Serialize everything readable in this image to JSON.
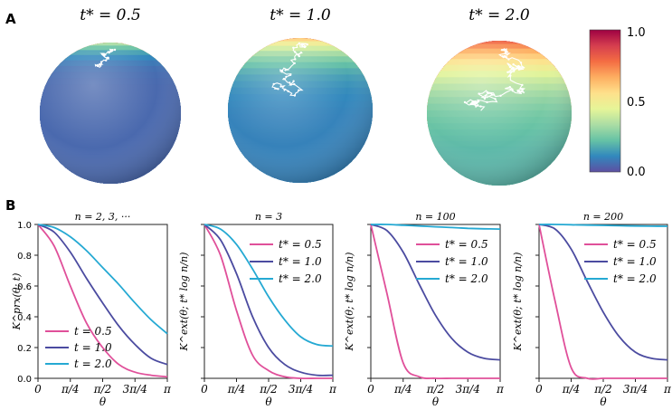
{
  "panel_labels": {
    "a": "A",
    "b": "B"
  },
  "spheres": [
    {
      "title": "t* = 0.5",
      "t_star": 0.5
    },
    {
      "title": "t* = 1.0",
      "t_star": 1.0
    },
    {
      "title": "t* = 2.0",
      "t_star": 2.0
    }
  ],
  "colorbar": {
    "tick_labels": [
      "1.0",
      "0.5",
      "0.0"
    ],
    "ticks": [
      1.0,
      0.5,
      0.0
    ],
    "range": [
      0.0,
      1.0
    ],
    "colormap": [
      "#5e4fa2",
      "#3288bd",
      "#66c2a5",
      "#abdda4",
      "#e6f598",
      "#fee08b",
      "#fdae61",
      "#f46d43",
      "#d53e4f",
      "#9e0142"
    ]
  },
  "series_colors": {
    "t0.5": "#e0509a",
    "t1.0": "#4b4ba0",
    "t2.0": "#25a9d3"
  },
  "chart_data": [
    {
      "type": "line",
      "title": "n = 2, 3, ···",
      "xlabel": "θ",
      "ylabel": "K^prx(θ; t)",
      "xlim": [
        0,
        3.14159
      ],
      "ylim": [
        0,
        1.0
      ],
      "xticks": [
        "0",
        "π/4",
        "π/2",
        "3π/4",
        "π"
      ],
      "yticks": [
        "0.0",
        "0.2",
        "0.4",
        "0.6",
        "0.8",
        "1.0"
      ],
      "legend_position": "lower-left",
      "x": [
        0.0,
        0.3927,
        0.7854,
        1.1781,
        1.5708,
        1.9635,
        2.3562,
        2.7489,
        3.1416
      ],
      "series": [
        {
          "name": "t = 0.5",
          "color_key": "t0.5",
          "values": [
            1.0,
            0.86,
            0.6,
            0.36,
            0.2,
            0.09,
            0.04,
            0.02,
            0.01
          ]
        },
        {
          "name": "t = 1.0",
          "color_key": "t1.0",
          "values": [
            1.0,
            0.95,
            0.82,
            0.65,
            0.49,
            0.34,
            0.22,
            0.13,
            0.09
          ]
        },
        {
          "name": "t = 2.0",
          "color_key": "t2.0",
          "values": [
            1.0,
            0.98,
            0.92,
            0.83,
            0.72,
            0.61,
            0.49,
            0.38,
            0.29
          ]
        }
      ]
    },
    {
      "type": "line",
      "title": "n = 3",
      "xlabel": "θ",
      "ylabel": "K^ext(θ; t* log n/n)",
      "xlim": [
        0,
        3.14159
      ],
      "ylim": [
        0,
        1.0
      ],
      "xticks": [
        "0",
        "π/4",
        "π/2",
        "3π/4",
        "π"
      ],
      "legend_position": "top-right",
      "x": [
        0.0,
        0.3927,
        0.7854,
        1.1781,
        1.5708,
        1.9635,
        2.3562,
        2.7489,
        3.1416
      ],
      "series": [
        {
          "name": "t* = 0.5",
          "color_key": "t0.5",
          "values": [
            1.0,
            0.8,
            0.44,
            0.15,
            0.05,
            0.01,
            0.0,
            0.0,
            0.0
          ]
        },
        {
          "name": "t* = 1.0",
          "color_key": "t1.0",
          "values": [
            1.0,
            0.9,
            0.68,
            0.4,
            0.2,
            0.09,
            0.04,
            0.02,
            0.02
          ]
        },
        {
          "name": "t* = 2.0",
          "color_key": "t2.0",
          "values": [
            1.0,
            0.97,
            0.87,
            0.71,
            0.53,
            0.38,
            0.27,
            0.22,
            0.21
          ]
        }
      ]
    },
    {
      "type": "line",
      "title": "n = 100",
      "xlabel": "θ",
      "ylabel": "K^ext(θ; t* log n/n)",
      "xlim": [
        0,
        3.14159
      ],
      "ylim": [
        0,
        1.0
      ],
      "xticks": [
        "0",
        "π/4",
        "π/2",
        "3π/4",
        "π"
      ],
      "legend_position": "top-right",
      "x": [
        0.0,
        0.3927,
        0.7854,
        1.1781,
        1.5708,
        1.9635,
        2.3562,
        2.7489,
        3.1416
      ],
      "series": [
        {
          "name": "t* = 0.5",
          "color_key": "t0.5",
          "values": [
            1.0,
            0.55,
            0.1,
            0.01,
            0.0,
            0.0,
            0.0,
            0.0,
            0.0
          ]
        },
        {
          "name": "t* = 1.0",
          "color_key": "t1.0",
          "values": [
            1.0,
            0.96,
            0.82,
            0.61,
            0.41,
            0.26,
            0.17,
            0.13,
            0.12
          ]
        },
        {
          "name": "t* = 2.0",
          "color_key": "t2.0",
          "values": [
            1.0,
            1.0,
            0.995,
            0.99,
            0.985,
            0.98,
            0.975,
            0.972,
            0.97
          ]
        }
      ]
    },
    {
      "type": "line",
      "title": "n = 200",
      "xlabel": "θ",
      "ylabel": "K^ext(θ; t* log n/n)",
      "xlim": [
        0,
        3.14159
      ],
      "ylim": [
        0,
        1.0
      ],
      "xticks": [
        "0",
        "π/4",
        "π/2",
        "3π/4",
        "π"
      ],
      "legend_position": "top-right",
      "x": [
        0.0,
        0.3927,
        0.7854,
        1.1781,
        1.5708,
        1.9635,
        2.3562,
        2.7489,
        3.1416
      ],
      "series": [
        {
          "name": "t* = 0.5",
          "color_key": "t0.5",
          "values": [
            1.0,
            0.5,
            0.07,
            0.0,
            0.0,
            0.0,
            0.0,
            0.0,
            0.0
          ]
        },
        {
          "name": "t* = 1.0",
          "color_key": "t1.0",
          "values": [
            1.0,
            0.97,
            0.84,
            0.63,
            0.43,
            0.27,
            0.17,
            0.13,
            0.12
          ]
        },
        {
          "name": "t* = 2.0",
          "color_key": "t2.0",
          "values": [
            1.0,
            1.0,
            0.998,
            0.996,
            0.994,
            0.992,
            0.99,
            0.989,
            0.988
          ]
        }
      ]
    }
  ]
}
